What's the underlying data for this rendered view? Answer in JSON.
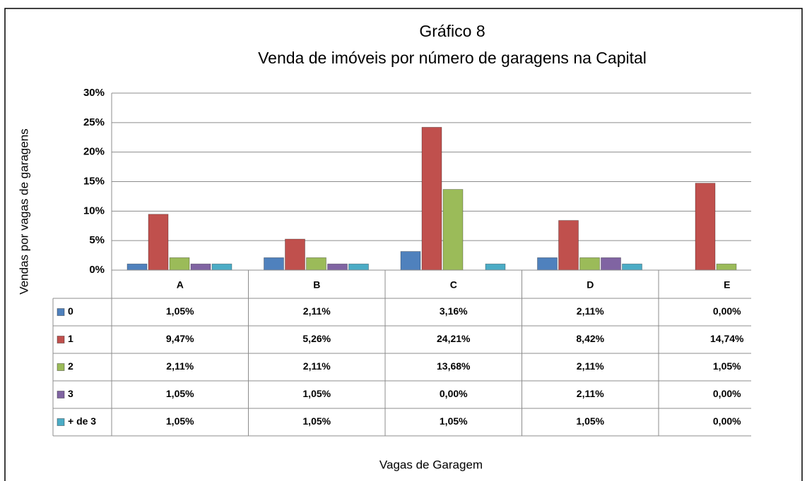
{
  "chart_data": {
    "type": "bar",
    "title": "Gráfico 8",
    "subtitle": "Venda de imóveis por número de garagens na Capital",
    "x_label": "Vagas de Garagem",
    "y_label": "Vendas por vagas de garagens",
    "categories": [
      "A",
      "B",
      "C",
      "D",
      "E"
    ],
    "series": [
      {
        "name": "0",
        "color": "#4f81bd",
        "values": [
          1.05,
          2.11,
          3.16,
          2.11,
          0.0
        ],
        "value_labels": [
          "1,05%",
          "2,11%",
          "3,16%",
          "2,11%",
          "0,00%"
        ]
      },
      {
        "name": "1",
        "color": "#c0504d",
        "values": [
          9.47,
          5.26,
          24.21,
          8.42,
          14.74
        ],
        "value_labels": [
          "9,47%",
          "5,26%",
          "24,21%",
          "8,42%",
          "14,74%"
        ]
      },
      {
        "name": "2",
        "color": "#9bbb59",
        "values": [
          2.11,
          2.11,
          13.68,
          2.11,
          1.05
        ],
        "value_labels": [
          "2,11%",
          "2,11%",
          "13,68%",
          "2,11%",
          "1,05%"
        ]
      },
      {
        "name": "3",
        "color": "#8064a2",
        "values": [
          1.05,
          1.05,
          0.0,
          2.11,
          0.0
        ],
        "value_labels": [
          "1,05%",
          "1,05%",
          "0,00%",
          "2,11%",
          "0,00%"
        ]
      },
      {
        "name": "+ de 3",
        "color": "#4bacc6",
        "values": [
          1.05,
          1.05,
          1.05,
          1.05,
          0.0
        ],
        "value_labels": [
          "1,05%",
          "1,05%",
          "1,05%",
          "1,05%",
          "0,00%"
        ]
      }
    ],
    "ylim": [
      0,
      30
    ],
    "yticks": [
      {
        "value": 0,
        "label": "0%"
      },
      {
        "value": 5,
        "label": "5%"
      },
      {
        "value": 10,
        "label": "10%"
      },
      {
        "value": 15,
        "label": "15%"
      },
      {
        "value": 20,
        "label": "20%"
      },
      {
        "value": 25,
        "label": "25%"
      },
      {
        "value": 30,
        "label": "30%"
      }
    ],
    "grid": true,
    "legend": "table"
  }
}
